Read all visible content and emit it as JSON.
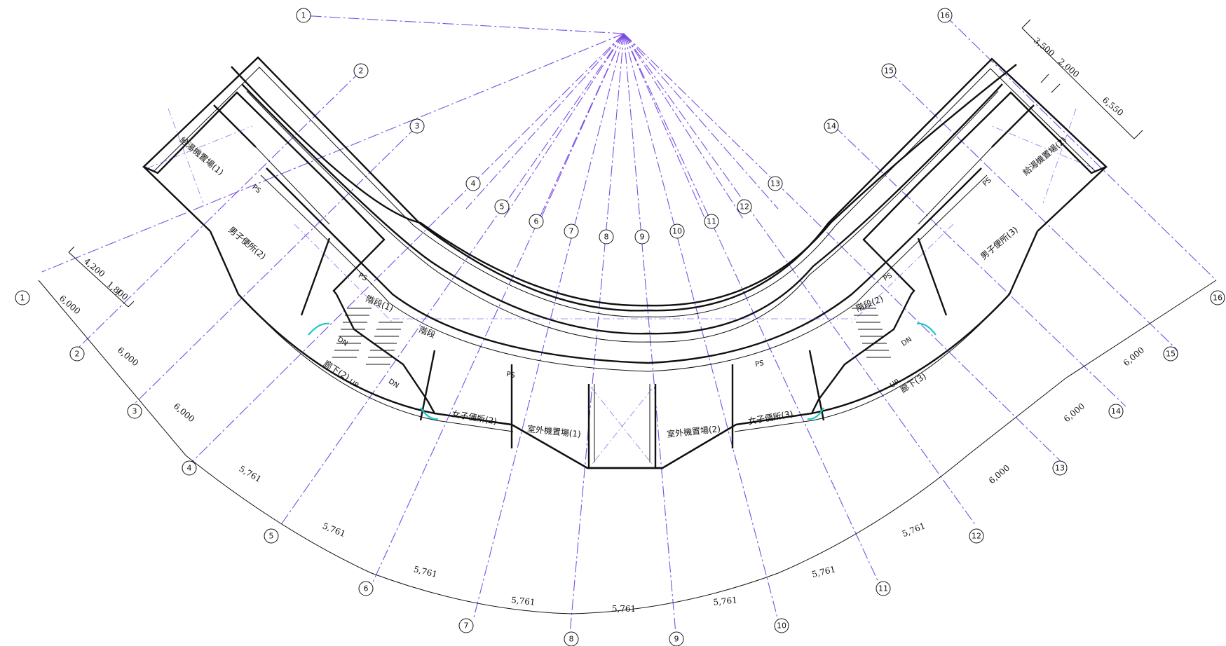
{
  "plan": {
    "grid_labels": [
      "1",
      "2",
      "3",
      "4",
      "5",
      "6",
      "7",
      "8",
      "9",
      "10",
      "11",
      "12",
      "13",
      "14",
      "15",
      "16"
    ],
    "arc_dimensions": [
      "5,761",
      "5,761",
      "5,761",
      "5,761",
      "5,761",
      "5,761",
      "5,761",
      "5,761"
    ],
    "left_leg_dimensions": [
      "6,000",
      "6,000",
      "6,000"
    ],
    "right_leg_dimensions": [
      "6,000",
      "6,000",
      "6,000"
    ],
    "left_cross_dimensions": [
      "4,200",
      "1,800"
    ],
    "right_cross_dimensions": [
      "3,500",
      "2,000",
      "6,550"
    ],
    "rooms": {
      "water_heater_1": "給湯機置場(1)",
      "water_heater_2": "給湯機置場(2)",
      "mens_toilet_2": "男子便所(2)",
      "mens_toilet_3": "男子便所(3)",
      "womens_toilet_2": "女子便所(2)",
      "womens_toilet_3": "女子便所(3)",
      "outdoor_unit_1": "室外機置場(1)",
      "outdoor_unit_2": "室外機置場(2)",
      "stair_1": "階段(1)",
      "stair_2": "階段(2)",
      "stair_mid": "階段",
      "corridor_2": "廊下(2)",
      "corridor_3": "廊下(3)"
    },
    "small_labels": {
      "ps": "PS",
      "dn": "DN",
      "up": "UP"
    }
  },
  "colors": {
    "grid_line": "#7b4ee6",
    "walls": "#111111",
    "door_swing": "#19c7c7"
  }
}
